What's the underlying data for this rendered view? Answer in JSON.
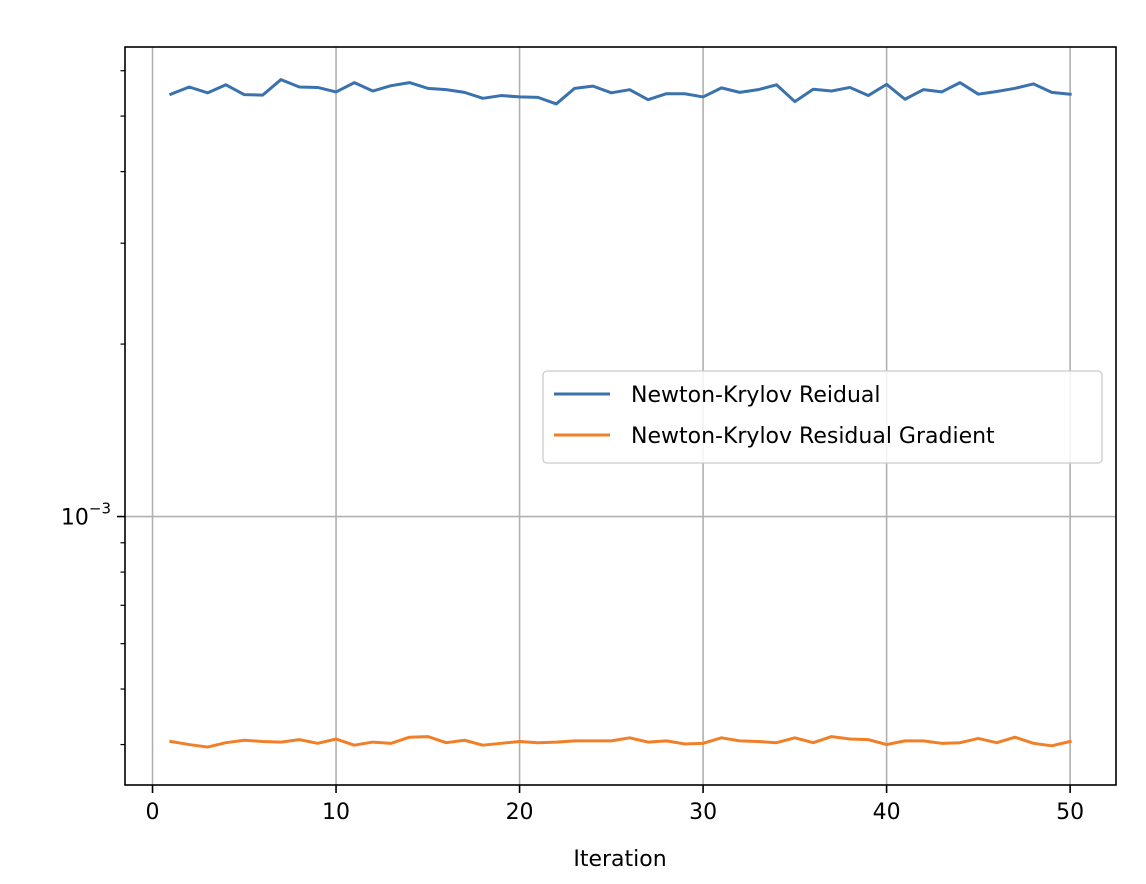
{
  "chart_data": {
    "type": "line",
    "title": "",
    "xlabel": "Iteration",
    "ylabel": "",
    "yscale": "log",
    "xlim": [
      -1.5,
      52.5
    ],
    "ylim": [
      0.00034,
      0.0066
    ],
    "xticks": [
      0,
      10,
      20,
      30,
      40,
      50
    ],
    "xtick_labels": [
      "0",
      "10",
      "20",
      "30",
      "40",
      "50"
    ],
    "yticks": [
      0.001
    ],
    "ytick_labels": [
      {
        "base": "10",
        "exp": "−3"
      }
    ],
    "grid": true,
    "legend_position": "center-right",
    "x": [
      1,
      2,
      3,
      4,
      5,
      6,
      7,
      8,
      9,
      10,
      11,
      12,
      13,
      14,
      15,
      16,
      17,
      18,
      19,
      20,
      21,
      22,
      23,
      24,
      25,
      26,
      27,
      28,
      29,
      30,
      31,
      32,
      33,
      34,
      35,
      36,
      37,
      38,
      39,
      40,
      41,
      42,
      43,
      44,
      45,
      46,
      47,
      48,
      49,
      50
    ],
    "series": [
      {
        "name": "Newton-Krylov Reidual",
        "color": "#3a72ad",
        "values": [
          0.00546,
          0.00562,
          0.00549,
          0.00567,
          0.00545,
          0.00544,
          0.00579,
          0.00562,
          0.00561,
          0.00551,
          0.00572,
          0.00553,
          0.00565,
          0.00572,
          0.00559,
          0.00556,
          0.0055,
          0.00537,
          0.00543,
          0.0054,
          0.00539,
          0.00525,
          0.00559,
          0.00564,
          0.00549,
          0.00556,
          0.00534,
          0.00547,
          0.00547,
          0.0054,
          0.0056,
          0.0055,
          0.00556,
          0.00567,
          0.0053,
          0.00557,
          0.00553,
          0.00561,
          0.00543,
          0.00568,
          0.00535,
          0.00556,
          0.00551,
          0.00572,
          0.00546,
          0.00552,
          0.00559,
          0.00569,
          0.0055,
          0.00546
        ]
      },
      {
        "name": "Newton-Krylov Residual Gradient",
        "color": "#f07f28",
        "values": [
          0.000405,
          0.0004,
          0.000396,
          0.000403,
          0.000407,
          0.000405,
          0.000404,
          0.000408,
          0.000402,
          0.000409,
          0.000399,
          0.000404,
          0.000402,
          0.000412,
          0.000413,
          0.000403,
          0.000407,
          0.000399,
          0.000402,
          0.000405,
          0.000403,
          0.000404,
          0.000406,
          0.000406,
          0.000406,
          0.000411,
          0.000404,
          0.000406,
          0.000401,
          0.000402,
          0.000411,
          0.000406,
          0.000405,
          0.000403,
          0.000411,
          0.000403,
          0.000413,
          0.000409,
          0.000408,
          0.0004,
          0.000406,
          0.000406,
          0.000402,
          0.000403,
          0.00041,
          0.000403,
          0.000412,
          0.000402,
          0.000398,
          0.000405
        ]
      }
    ]
  }
}
